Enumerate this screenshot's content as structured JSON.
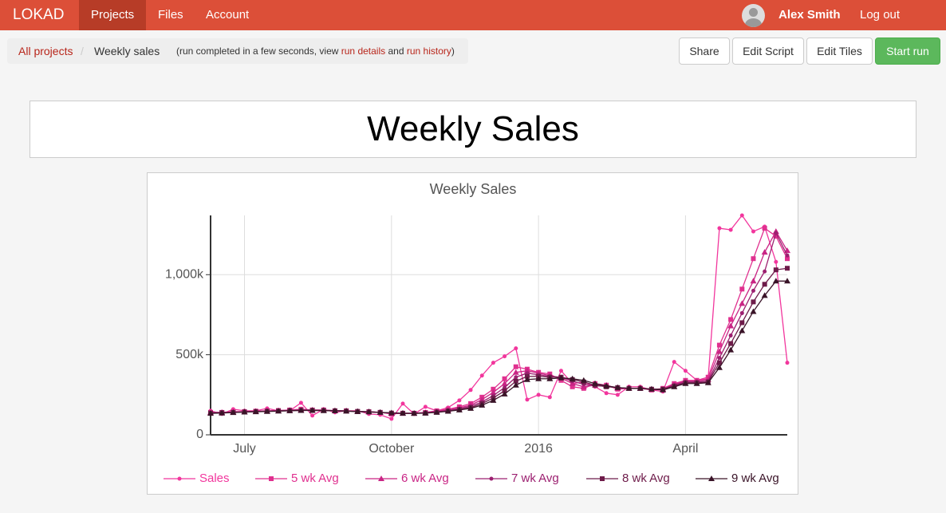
{
  "nav": {
    "brand": "LOKAD",
    "items": [
      "Projects",
      "Files",
      "Account"
    ],
    "user": "Alex Smith",
    "logout": "Log out"
  },
  "breadcrumb": {
    "root": "All projects",
    "current": "Weekly sales",
    "note": [
      "(run completed in a few seconds, view ",
      "run details",
      " and ",
      "run history",
      ")"
    ]
  },
  "buttons": [
    "Share",
    "Edit Script",
    "Edit Tiles",
    "Start run"
  ],
  "tile_title": "Weekly Sales",
  "chart_data": {
    "type": "line",
    "title": "Weekly Sales",
    "categories": [
      null,
      null,
      null,
      "July",
      null,
      null,
      null,
      null,
      null,
      null,
      null,
      null,
      null,
      null,
      null,
      null,
      "October",
      null,
      null,
      null,
      null,
      null,
      null,
      null,
      null,
      null,
      null,
      null,
      null,
      "2016",
      null,
      null,
      null,
      null,
      null,
      null,
      null,
      null,
      null,
      null,
      null,
      null,
      "April",
      null,
      null,
      null,
      null,
      null,
      null,
      null,
      null,
      null
    ],
    "ylim": [
      0,
      1370000
    ],
    "yticks": [
      0,
      {
        "value": 500000,
        "label": "500k"
      },
      {
        "value": 1000000,
        "label": "1,000k"
      }
    ],
    "grid": true,
    "legend": "bottom",
    "series": [
      {
        "name": "Sales",
        "color": "#f2369d",
        "marker": "circle",
        "values": [
          150000,
          130000,
          160000,
          150000,
          150000,
          165000,
          150000,
          150000,
          200000,
          120000,
          160000,
          140000,
          150000,
          150000,
          130000,
          125000,
          100000,
          195000,
          130000,
          175000,
          150000,
          170000,
          215000,
          280000,
          370000,
          450000,
          490000,
          540000,
          220000,
          250000,
          235000,
          400000,
          320000,
          330000,
          300000,
          260000,
          250000,
          300000,
          300000,
          280000,
          270000,
          455000,
          400000,
          340000,
          350000,
          1290000,
          1280000,
          1370000,
          1270000,
          1300000,
          1080000,
          450000
        ]
      },
      {
        "name": "5 wk Avg",
        "color": "#e0308f",
        "marker": "square",
        "values": [
          140000,
          140000,
          145000,
          145000,
          148000,
          150000,
          152000,
          155000,
          160000,
          155000,
          155000,
          150000,
          150000,
          145000,
          145000,
          140000,
          130000,
          135000,
          135000,
          140000,
          150000,
          160000,
          175000,
          195000,
          235000,
          285000,
          350000,
          425000,
          410000,
          390000,
          380000,
          340000,
          300000,
          290000,
          320000,
          310000,
          285000,
          290000,
          290000,
          280000,
          290000,
          320000,
          340000,
          340000,
          360000,
          560000,
          720000,
          910000,
          1100000,
          1290000,
          1240000,
          1100000
        ]
      },
      {
        "name": "6 wk Avg",
        "color": "#c92585",
        "marker": "triangle",
        "values": [
          140000,
          140000,
          142000,
          145000,
          147000,
          149000,
          151000,
          153000,
          157000,
          155000,
          154000,
          151000,
          150000,
          146000,
          144000,
          140000,
          133000,
          134000,
          134000,
          138000,
          146000,
          155000,
          168000,
          185000,
          220000,
          265000,
          320000,
          390000,
          400000,
          385000,
          370000,
          355000,
          320000,
          300000,
          310000,
          310000,
          290000,
          290000,
          290000,
          285000,
          285000,
          315000,
          335000,
          335000,
          345000,
          520000,
          680000,
          820000,
          960000,
          1140000,
          1270000,
          1150000
        ]
      },
      {
        "name": "7 wk Avg",
        "color": "#9c2070",
        "marker": "circle",
        "values": [
          138000,
          139000,
          141000,
          144000,
          146000,
          148000,
          150000,
          152000,
          155000,
          154000,
          153000,
          151000,
          149000,
          146000,
          143000,
          140000,
          135000,
          134000,
          134000,
          137000,
          144000,
          152000,
          162000,
          178000,
          205000,
          245000,
          295000,
          360000,
          385000,
          375000,
          365000,
          360000,
          335000,
          315000,
          305000,
          305000,
          295000,
          290000,
          290000,
          285000,
          285000,
          310000,
          330000,
          330000,
          335000,
          480000,
          620000,
          760000,
          900000,
          1020000,
          1260000,
          1120000
        ]
      },
      {
        "name": "8 wk Avg",
        "color": "#6e1c4a",
        "marker": "square",
        "values": [
          136000,
          138000,
          140000,
          143000,
          145000,
          147000,
          149000,
          151000,
          153000,
          153000,
          152000,
          150000,
          148000,
          146000,
          143000,
          140000,
          136000,
          134000,
          134000,
          136000,
          142000,
          149000,
          158000,
          170000,
          195000,
          230000,
          275000,
          335000,
          365000,
          365000,
          360000,
          360000,
          345000,
          330000,
          310000,
          300000,
          295000,
          290000,
          290000,
          285000,
          285000,
          305000,
          325000,
          325000,
          330000,
          450000,
          570000,
          700000,
          830000,
          940000,
          1030000,
          1040000
        ]
      },
      {
        "name": "9 wk Avg",
        "color": "#3a1428",
        "marker": "triangle",
        "values": [
          134000,
          136000,
          139000,
          142000,
          144000,
          146000,
          148000,
          150000,
          152000,
          152000,
          151000,
          150000,
          148000,
          145000,
          143000,
          140000,
          137000,
          135000,
          134000,
          135000,
          140000,
          147000,
          155000,
          165000,
          185000,
          215000,
          255000,
          310000,
          345000,
          350000,
          350000,
          355000,
          350000,
          340000,
          320000,
          305000,
          295000,
          290000,
          290000,
          285000,
          280000,
          300000,
          320000,
          320000,
          325000,
          420000,
          530000,
          650000,
          770000,
          870000,
          960000,
          960000
        ]
      }
    ]
  }
}
